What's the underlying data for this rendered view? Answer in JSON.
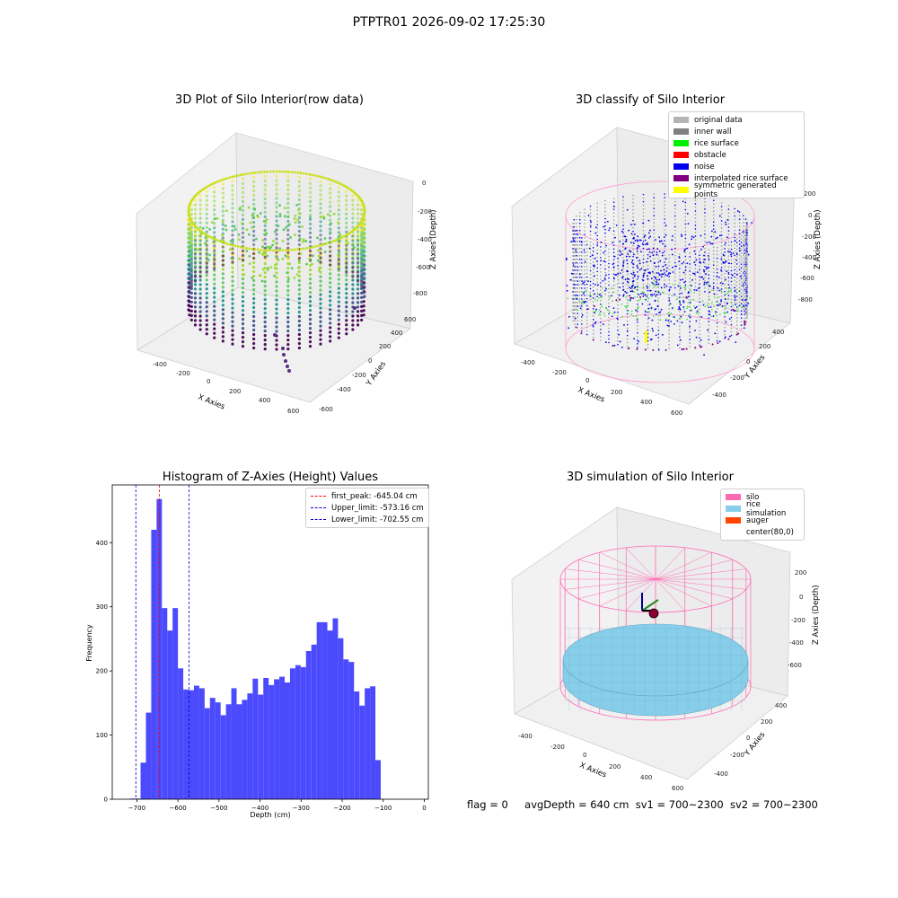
{
  "suptitle": "PTPTR01 2026-09-02 17:25:30",
  "panels": {
    "raw": {
      "title": "3D Plot of Silo Interior(row data)",
      "xlabel": "X Axies",
      "ylabel": "Y Axies",
      "zlabel": "Z Axies (Depth)",
      "xticks": [
        "-400",
        "-200",
        "0",
        "200",
        "400",
        "600"
      ],
      "yticks": [
        "600",
        "400",
        "200",
        "0",
        "-200",
        "-400",
        "-600"
      ],
      "zticks": [
        "0",
        "-200",
        "-400",
        "-600",
        "-800"
      ]
    },
    "classify": {
      "title": "3D classify of Silo Interior",
      "xlabel": "X Axies",
      "ylabel": "Y Axies",
      "zlabel": "Z Axies (Depth)",
      "xticks": [
        "-400",
        "-200",
        "0",
        "200",
        "400",
        "600"
      ],
      "yticks": [
        "400",
        "200",
        "0",
        "-200",
        "-400"
      ],
      "zticks": [
        "200",
        "0",
        "-200",
        "-400",
        "-600",
        "-800"
      ],
      "legend": [
        {
          "label": "original data",
          "color": "#b4b4b4"
        },
        {
          "label": "inner wall",
          "color": "#808080"
        },
        {
          "label": "rice surface",
          "color": "#00ee00"
        },
        {
          "label": "obstacle",
          "color": "#ff0000"
        },
        {
          "label": "noise",
          "color": "#0000ee"
        },
        {
          "label": "interpolated rice surface",
          "color": "#800080"
        },
        {
          "label": "symmetric generated points",
          "color": "#ffff00"
        }
      ]
    },
    "simulation": {
      "title": "3D simulation of Silo Interior",
      "xlabel": "X Axies",
      "ylabel": "Y Axies",
      "zlabel": "Z Axies (Depth)",
      "xticks": [
        "-400",
        "-200",
        "0",
        "200",
        "400",
        "600"
      ],
      "yticks": [
        "400",
        "200",
        "0",
        "-200",
        "-400"
      ],
      "zticks": [
        "200",
        "0",
        "-200",
        "-400",
        "-600"
      ],
      "legend": [
        {
          "label": "silo",
          "color": "#ff69b4"
        },
        {
          "label": "rice simulation",
          "color": "#87ceeb"
        },
        {
          "label": "auger",
          "color": "#ff4500"
        },
        {
          "label": "center(80,0)",
          "color": ""
        }
      ]
    }
  },
  "footer": {
    "flag": "flag = 0",
    "avgdepth": "avgDepth = 640 cm",
    "sv1": "sv1 = 700~2300",
    "sv2": "sv2 = 700~2300"
  },
  "chart_data": [
    {
      "type": "bar",
      "title": "Histogram of Z-Axies (Height) Values",
      "xlabel": "Depth (cm)",
      "ylabel": "Frequency",
      "xlim": [
        -760,
        10
      ],
      "ylim": [
        0,
        490
      ],
      "xticks": [
        -700,
        -600,
        -500,
        -400,
        -300,
        -200,
        -100,
        0
      ],
      "yticks": [
        0,
        100,
        200,
        300,
        400
      ],
      "bin_width": 13,
      "bins": [
        {
          "x0": -717,
          "x1": -704,
          "value": 1
        },
        {
          "x0": -704,
          "x1": -691,
          "value": 1
        },
        {
          "x0": -691,
          "x1": -678,
          "value": 57
        },
        {
          "x0": -678,
          "x1": -665,
          "value": 135
        },
        {
          "x0": -665,
          "x1": -652,
          "value": 420
        },
        {
          "x0": -652,
          "x1": -639,
          "value": 468
        },
        {
          "x0": -639,
          "x1": -626,
          "value": 298
        },
        {
          "x0": -626,
          "x1": -613,
          "value": 263
        },
        {
          "x0": -613,
          "x1": -600,
          "value": 298
        },
        {
          "x0": -600,
          "x1": -587,
          "value": 204
        },
        {
          "x0": -587,
          "x1": -574,
          "value": 171
        },
        {
          "x0": -574,
          "x1": -561,
          "value": 170
        },
        {
          "x0": -561,
          "x1": -548,
          "value": 177
        },
        {
          "x0": -548,
          "x1": -535,
          "value": 173
        },
        {
          "x0": -535,
          "x1": -522,
          "value": 142
        },
        {
          "x0": -522,
          "x1": -509,
          "value": 158
        },
        {
          "x0": -509,
          "x1": -496,
          "value": 151
        },
        {
          "x0": -496,
          "x1": -483,
          "value": 131
        },
        {
          "x0": -483,
          "x1": -470,
          "value": 148
        },
        {
          "x0": -470,
          "x1": -457,
          "value": 173
        },
        {
          "x0": -457,
          "x1": -444,
          "value": 148
        },
        {
          "x0": -444,
          "x1": -431,
          "value": 155
        },
        {
          "x0": -431,
          "x1": -418,
          "value": 165
        },
        {
          "x0": -418,
          "x1": -405,
          "value": 188
        },
        {
          "x0": -405,
          "x1": -392,
          "value": 163
        },
        {
          "x0": -392,
          "x1": -379,
          "value": 189
        },
        {
          "x0": -379,
          "x1": -366,
          "value": 178
        },
        {
          "x0": -366,
          "x1": -353,
          "value": 187
        },
        {
          "x0": -353,
          "x1": -340,
          "value": 191
        },
        {
          "x0": -340,
          "x1": -327,
          "value": 182
        },
        {
          "x0": -327,
          "x1": -314,
          "value": 204
        },
        {
          "x0": -314,
          "x1": -301,
          "value": 209
        },
        {
          "x0": -301,
          "x1": -288,
          "value": 206
        },
        {
          "x0": -288,
          "x1": -275,
          "value": 231
        },
        {
          "x0": -275,
          "x1": -262,
          "value": 241
        },
        {
          "x0": -262,
          "x1": -249,
          "value": 276
        },
        {
          "x0": -249,
          "x1": -236,
          "value": 276
        },
        {
          "x0": -236,
          "x1": -223,
          "value": 263
        },
        {
          "x0": -223,
          "x1": -210,
          "value": 282
        },
        {
          "x0": -210,
          "x1": -197,
          "value": 251
        },
        {
          "x0": -197,
          "x1": -184,
          "value": 218
        },
        {
          "x0": -184,
          "x1": -171,
          "value": 214
        },
        {
          "x0": -171,
          "x1": -158,
          "value": 168
        },
        {
          "x0": -158,
          "x1": -145,
          "value": 146
        },
        {
          "x0": -145,
          "x1": -132,
          "value": 173
        },
        {
          "x0": -132,
          "x1": -119,
          "value": 176
        },
        {
          "x0": -119,
          "x1": -106,
          "value": 61
        }
      ],
      "bar_color": "#4b4bfd",
      "vlines": [
        {
          "label": "first_peak: -645.04 cm",
          "x": -645.04,
          "color": "#ff0000"
        },
        {
          "label": "Upper_limit: -573.16 cm",
          "x": -573.16,
          "color": "#0000cc"
        },
        {
          "label": "Lower_limit: -702.55 cm",
          "x": -702.55,
          "color": "#0000cc"
        }
      ],
      "legend_position": "top-right"
    }
  ]
}
